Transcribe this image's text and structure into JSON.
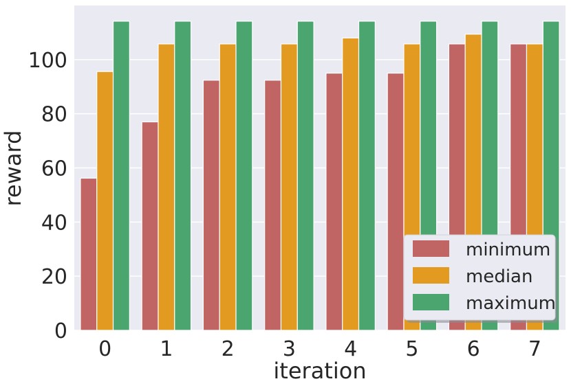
{
  "chart_data": {
    "type": "bar",
    "categories": [
      "0",
      "1",
      "2",
      "3",
      "4",
      "5",
      "6",
      "7"
    ],
    "series": [
      {
        "name": "minimum",
        "color": "#c06464",
        "values": [
          56.2,
          77.0,
          92.4,
          92.4,
          95.0,
          95.0,
          105.8,
          105.8
        ]
      },
      {
        "name": "median",
        "color": "#e39a20",
        "values": [
          95.6,
          105.8,
          105.8,
          105.8,
          108.0,
          105.8,
          109.4,
          105.8
        ]
      },
      {
        "name": "maximum",
        "color": "#4aa56f",
        "values": [
          114.2,
          114.2,
          114.2,
          114.2,
          114.2,
          114.2,
          114.2,
          114.2
        ]
      }
    ],
    "yticks": [
      "0",
      "20",
      "40",
      "60",
      "80",
      "100"
    ],
    "xlabel": "iteration",
    "ylabel": "reward",
    "ylim": [
      0,
      120
    ],
    "grid": true,
    "legend_position": "bottom-right"
  }
}
